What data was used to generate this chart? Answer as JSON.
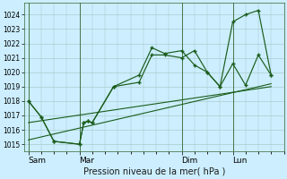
{
  "background_color": "#cceeff",
  "grid_color": "#aacccc",
  "line_color": "#1a5c1a",
  "marker_color": "#1a5c1a",
  "xlabel": "Pression niveau de la mer( hPa )",
  "ylim": [
    1014.5,
    1024.8
  ],
  "yticks": [
    1015,
    1016,
    1017,
    1018,
    1019,
    1020,
    1021,
    1022,
    1023,
    1024
  ],
  "xtick_labels": [
    "Sam",
    "Mar",
    "Dim",
    "Lun"
  ],
  "xtick_positions": [
    0,
    12,
    36,
    48
  ],
  "vline_positions": [
    0,
    12,
    36,
    48
  ],
  "xlim": [
    -1,
    60
  ],
  "series1_x": [
    0,
    3,
    6,
    12,
    13,
    14,
    15,
    20,
    26,
    29,
    32,
    36,
    39,
    42,
    45,
    48,
    51,
    54,
    57
  ],
  "series1_y": [
    1018.0,
    1016.9,
    1015.2,
    1015.0,
    1016.5,
    1016.6,
    1016.5,
    1019.0,
    1019.3,
    1021.2,
    1021.2,
    1021.0,
    1021.5,
    1020.0,
    1019.0,
    1023.5,
    1024.0,
    1024.3,
    1019.8
  ],
  "series2_x": [
    0,
    3,
    6,
    12,
    13,
    14,
    15,
    20,
    26,
    29,
    32,
    36,
    39,
    42,
    45,
    48,
    51,
    54,
    57
  ],
  "series2_y": [
    1018.0,
    1016.9,
    1015.2,
    1015.0,
    1016.5,
    1016.6,
    1016.5,
    1019.0,
    1019.8,
    1021.7,
    1021.3,
    1021.5,
    1020.5,
    1020.0,
    1019.0,
    1020.6,
    1019.1,
    1021.2,
    1019.8
  ],
  "trend1_x": [
    0,
    57
  ],
  "trend1_y": [
    1015.3,
    1019.2
  ],
  "trend2_x": [
    0,
    57
  ],
  "trend2_y": [
    1016.5,
    1019.0
  ]
}
